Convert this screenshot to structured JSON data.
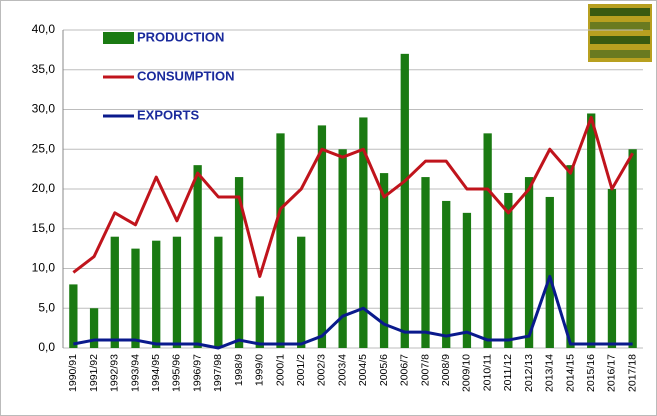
{
  "chart_data": {
    "type": "bar_line",
    "categories": [
      "1990/91",
      "1991/92",
      "1992/93",
      "1993/94",
      "1994/95",
      "1995/96",
      "1996/97",
      "1997/98",
      "1998/9",
      "1999/0",
      "2000/1",
      "2001/2",
      "2002/3",
      "2003/4",
      "2004/5",
      "2005/6",
      "2006/7",
      "2007/8",
      "2008/9",
      "2009/10",
      "2010/11",
      "2011/12",
      "2012/13",
      "2013/14",
      "2014/15",
      "2015/16",
      "2016/17",
      "2017/18"
    ],
    "series": [
      {
        "name": "PRODUCTION",
        "type": "bar",
        "color": "#1a7a12",
        "values": [
          8,
          5,
          14,
          12.5,
          13.5,
          14,
          23,
          14,
          21.5,
          6.5,
          27,
          14,
          28,
          25,
          29,
          22,
          37,
          21.5,
          18.5,
          17,
          27,
          19.5,
          21.5,
          19,
          23,
          29.5,
          20,
          25
        ]
      },
      {
        "name": "CONSUMPTION",
        "type": "line",
        "color": "#c0141c",
        "values": [
          9.5,
          11.5,
          17,
          15.5,
          21.5,
          16,
          22,
          19,
          19,
          9,
          17.5,
          20,
          25,
          24,
          25,
          19,
          21,
          23.5,
          23.5,
          20,
          20,
          17,
          20,
          25,
          22,
          29,
          20,
          24.5
        ]
      },
      {
        "name": "EXPORTS",
        "type": "line",
        "color": "#0a1a8c",
        "values": [
          0.5,
          1,
          1,
          1,
          0.5,
          0.5,
          0.5,
          0,
          1,
          0.5,
          0.5,
          0.5,
          1.5,
          4,
          5,
          3,
          2,
          2,
          1.5,
          2,
          1,
          1,
          1.5,
          9,
          0.5,
          0.5,
          0.5,
          0.5
        ]
      }
    ],
    "ylim": [
      0,
      40
    ],
    "yticks": [
      {
        "value": 0,
        "label": "0,0"
      },
      {
        "value": 5,
        "label": "5,0"
      },
      {
        "value": 10,
        "label": "10,0"
      },
      {
        "value": 15,
        "label": "15,0"
      },
      {
        "value": 20,
        "label": "20,0"
      },
      {
        "value": 25,
        "label": "25,0"
      },
      {
        "value": 30,
        "label": "30,0"
      },
      {
        "value": 35,
        "label": "35,0"
      },
      {
        "value": 40,
        "label": "40,0"
      }
    ],
    "grid": true,
    "legend": "upper left"
  }
}
